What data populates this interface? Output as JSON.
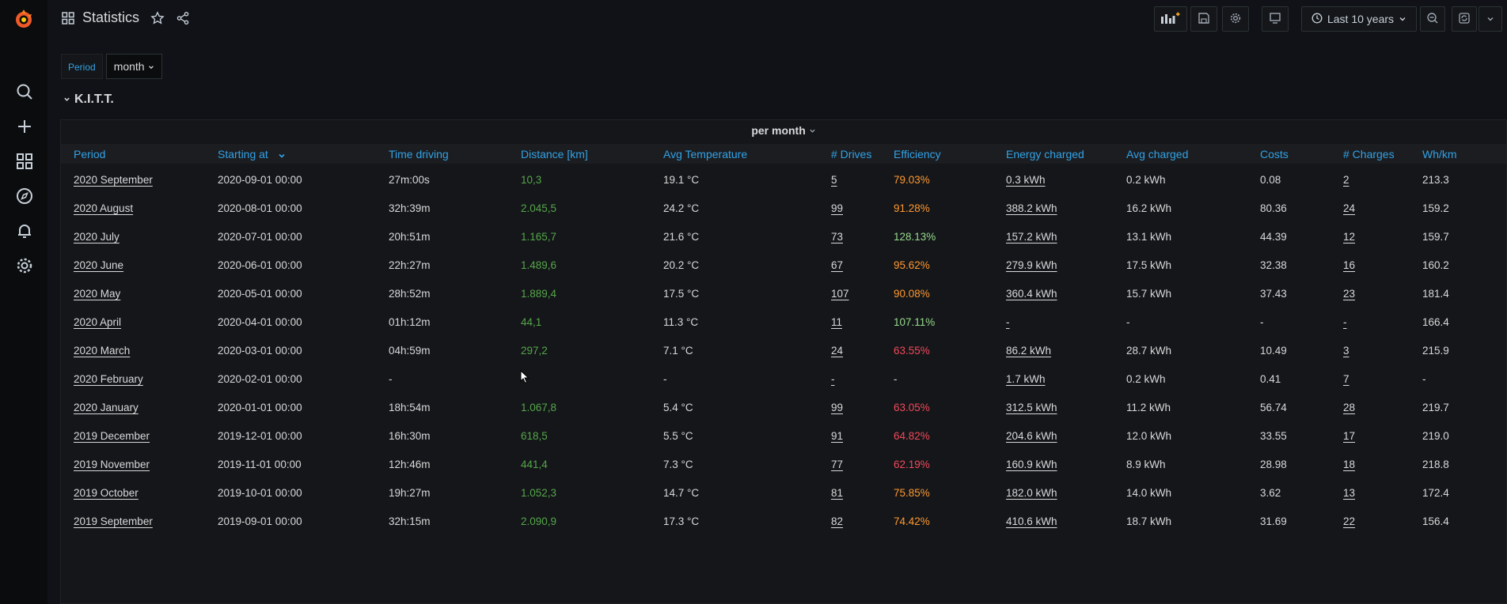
{
  "header": {
    "title": "Statistics",
    "time_range": "Last 10 years"
  },
  "variables": {
    "period_label": "Period",
    "period_value": "month"
  },
  "row": {
    "title": "K.I.T.T."
  },
  "panel": {
    "title": "per month",
    "columns": [
      "Period",
      "Starting at",
      "Time driving",
      "Distance [km]",
      "Avg Temperature",
      "# Drives",
      "Efficiency",
      "Energy charged",
      "Avg charged",
      "Costs",
      "# Charges",
      "Wh/km"
    ],
    "rows": [
      [
        "2020 September",
        "2020-09-01 00:00",
        "27m:00s",
        "10,3",
        "19.1 °C",
        "5",
        "79.03%",
        "0.3 kWh",
        "0.2 kWh",
        "0.08",
        "2",
        "213.3"
      ],
      [
        "2020 August",
        "2020-08-01 00:00",
        "32h:39m",
        "2.045,5",
        "24.2 °C",
        "99",
        "91.28%",
        "388.2 kWh",
        "16.2 kWh",
        "80.36",
        "24",
        "159.2"
      ],
      [
        "2020 July",
        "2020-07-01 00:00",
        "20h:51m",
        "1.165,7",
        "21.6 °C",
        "73",
        "128.13%",
        "157.2 kWh",
        "13.1 kWh",
        "44.39",
        "12",
        "159.7"
      ],
      [
        "2020 June",
        "2020-06-01 00:00",
        "22h:27m",
        "1.489,6",
        "20.2 °C",
        "67",
        "95.62%",
        "279.9 kWh",
        "17.5 kWh",
        "32.38",
        "16",
        "160.2"
      ],
      [
        "2020 May",
        "2020-05-01 00:00",
        "28h:52m",
        "1.889,4",
        "17.5 °C",
        "107",
        "90.08%",
        "360.4 kWh",
        "15.7 kWh",
        "37.43",
        "23",
        "181.4"
      ],
      [
        "2020 April",
        "2020-04-01 00:00",
        "01h:12m",
        "44,1",
        "11.3 °C",
        "11",
        "107.11%",
        "-",
        "-",
        "-",
        "-",
        "166.4"
      ],
      [
        "2020 March",
        "2020-03-01 00:00",
        "04h:59m",
        "297,2",
        "7.1 °C",
        "24",
        "63.55%",
        "86.2 kWh",
        "28.7 kWh",
        "10.49",
        "3",
        "215.9"
      ],
      [
        "2020 February",
        "2020-02-01 00:00",
        "-",
        "",
        "-",
        "-",
        "-",
        "1.7 kWh",
        "0.2 kWh",
        "0.41",
        "7",
        "-"
      ],
      [
        "2020 January",
        "2020-01-01 00:00",
        "18h:54m",
        "1.067,8",
        "5.4 °C",
        "99",
        "63.05%",
        "312.5 kWh",
        "11.2 kWh",
        "56.74",
        "28",
        "219.7"
      ],
      [
        "2019 December",
        "2019-12-01 00:00",
        "16h:30m",
        "618,5",
        "5.5 °C",
        "91",
        "64.82%",
        "204.6 kWh",
        "12.0 kWh",
        "33.55",
        "17",
        "219.0"
      ],
      [
        "2019 November",
        "2019-11-01 00:00",
        "12h:46m",
        "441,4",
        "7.3 °C",
        "77",
        "62.19%",
        "160.9 kWh",
        "8.9 kWh",
        "28.98",
        "18",
        "218.8"
      ],
      [
        "2019 October",
        "2019-10-01 00:00",
        "19h:27m",
        "1.052,3",
        "14.7 °C",
        "81",
        "75.85%",
        "182.0 kWh",
        "14.0 kWh",
        "3.62",
        "13",
        "172.4"
      ],
      [
        "2019 September",
        "2019-09-01 00:00",
        "32h:15m",
        "2.090,9",
        "17.3 °C",
        "82",
        "74.42%",
        "410.6 kWh",
        "18.7 kWh",
        "31.69",
        "22",
        "156.4"
      ]
    ],
    "efficiency_classes": [
      "orange",
      "orange",
      "lightgreen",
      "orange",
      "orange",
      "lightgreen",
      "red",
      "",
      "red",
      "red",
      "red",
      "orange",
      "orange"
    ]
  }
}
